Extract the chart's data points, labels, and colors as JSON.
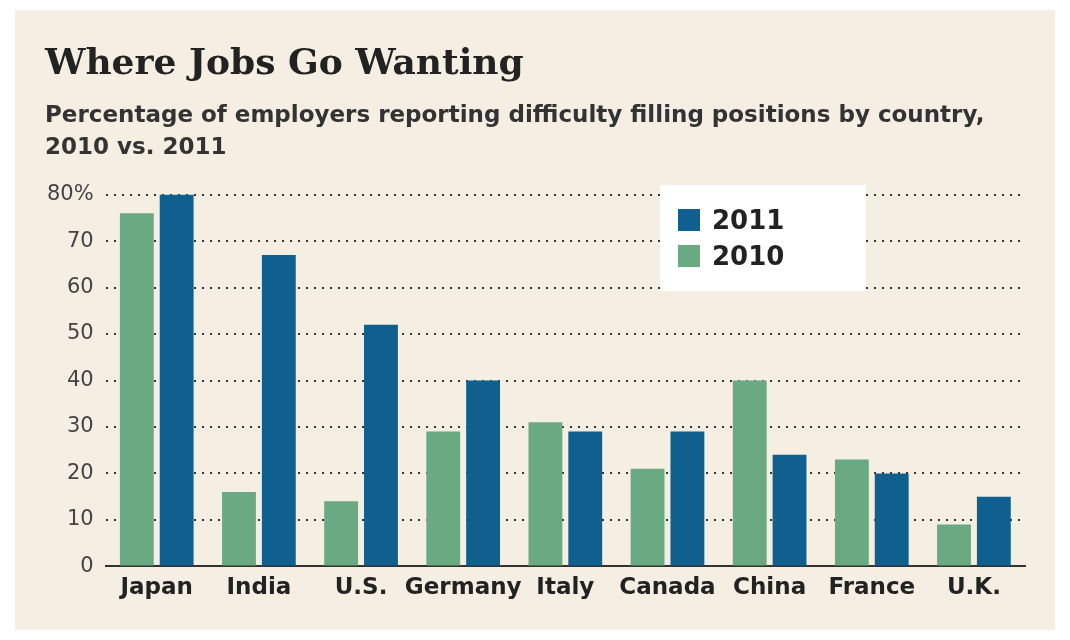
{
  "chart_data": {
    "type": "bar",
    "title": "Where Jobs Go Wanting",
    "subtitle": "Percentage of employers reporting difficulty filling positions by country, 2010 vs. 2011",
    "categories": [
      "Japan",
      "India",
      "U.S.",
      "Germany",
      "Italy",
      "Canada",
      "China",
      "France",
      "U.K."
    ],
    "series": [
      {
        "name": "2010",
        "color": "#6aaa82",
        "values": [
          76,
          16,
          14,
          29,
          31,
          21,
          40,
          23,
          9
        ]
      },
      {
        "name": "2011",
        "color": "#0f5f8f",
        "values": [
          80,
          67,
          52,
          40,
          29,
          29,
          24,
          20,
          15
        ]
      }
    ],
    "ylim": [
      0,
      80
    ],
    "yticks": [
      0,
      10,
      20,
      30,
      40,
      50,
      60,
      70,
      {
        "value": 80,
        "label": "80%"
      }
    ],
    "grid": "y",
    "legend": "top right"
  }
}
